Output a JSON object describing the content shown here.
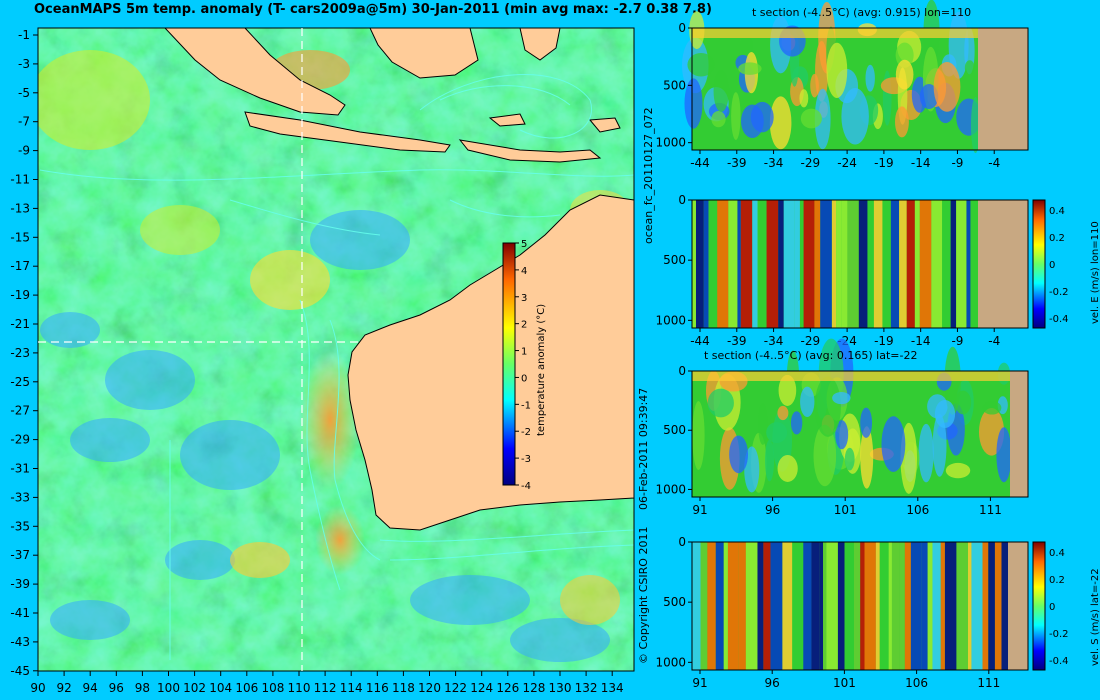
{
  "title": "OceanMAPS 5m temp. anomaly (T- cars2009a@5m) 30-Jan-2011 (min avg max: -2.7 0.38 7.8)",
  "map": {
    "lon_ticks": [
      "90",
      "92",
      "94",
      "96",
      "98",
      "100",
      "102",
      "104",
      "106",
      "108",
      "110",
      "112",
      "114",
      "116",
      "118",
      "120",
      "122",
      "124",
      "126",
      "128",
      "130",
      "132",
      "134"
    ],
    "lat_ticks": [
      "-1",
      "-3",
      "-5",
      "-7",
      "-9",
      "-11",
      "-13",
      "-15",
      "-17",
      "-19",
      "-21",
      "-23",
      "-25",
      "-27",
      "-29",
      "-31",
      "-33",
      "-35",
      "-37",
      "-39",
      "-41",
      "-43",
      "-45"
    ],
    "section_lon": 110,
    "section_lat": -22,
    "colorbar": {
      "label": "temperature anomaly (°C)",
      "ticks": [
        "5",
        "4",
        "3",
        "2",
        "1",
        "0",
        "-1",
        "-2",
        "-3",
        "-4"
      ],
      "range": [
        -4,
        5
      ]
    },
    "colors": {
      "land": "#ffcc99",
      "ocean_base": "#33cc33",
      "frame_bg": "#00ccff"
    }
  },
  "side_text": {
    "forecast_id": "ocean_fc_20110127_072",
    "generated": "06-Feb-2011 09:39:47",
    "copyright": "© Copyright CSIRO 2011"
  },
  "panels": [
    {
      "title": "t section (-4..5°C) (avg: 0.915) lon=110",
      "x_ticks": [
        "-44",
        "-39",
        "-34",
        "-29",
        "-24",
        "-19",
        "-14",
        "-9",
        "-4"
      ],
      "y_ticks": [
        "0",
        "500",
        "1000"
      ],
      "colorbar": null
    },
    {
      "title": "",
      "x_ticks": [
        "-44",
        "-39",
        "-34",
        "-29",
        "-24",
        "-19",
        "-14",
        "-9",
        "-4"
      ],
      "y_ticks": [
        "0",
        "500",
        "1000"
      ],
      "colorbar": {
        "label": "vel. E (m/s) lon=110",
        "ticks": [
          "0.4",
          "0.2",
          "0",
          "-0.2",
          "-0.4"
        ]
      }
    },
    {
      "title": "t section (-4..5°C) (avg: 0.165) lat=-22",
      "x_ticks": [
        "91",
        "96",
        "101",
        "106",
        "111"
      ],
      "y_ticks": [
        "0",
        "500",
        "1000"
      ],
      "colorbar": null
    },
    {
      "title": "",
      "x_ticks": [
        "91",
        "96",
        "101",
        "106",
        "111"
      ],
      "y_ticks": [
        "0",
        "500",
        "1000"
      ],
      "colorbar": {
        "label": "vel. S (m/s) lat=-22",
        "ticks": [
          "0.4",
          "0.2",
          "0",
          "-0.2",
          "-0.4"
        ]
      }
    }
  ]
}
